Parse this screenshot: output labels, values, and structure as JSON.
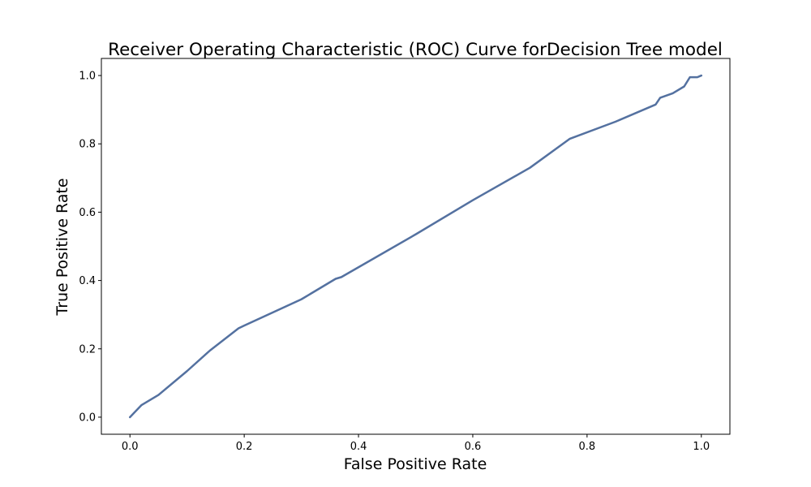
{
  "chart_data": {
    "type": "line",
    "title": "Receiver Operating Characteristic (ROC) Curve forDecision Tree  model",
    "xlabel": "False Positive Rate",
    "ylabel": "True Positive Rate",
    "xlim": [
      -0.05,
      1.05
    ],
    "ylim": [
      -0.05,
      1.05
    ],
    "xticks": [
      0.0,
      0.2,
      0.4,
      0.6,
      0.8,
      1.0
    ],
    "yticks": [
      0.0,
      0.2,
      0.4,
      0.6,
      0.8,
      1.0
    ],
    "xtick_labels": [
      "0.0",
      "0.2",
      "0.4",
      "0.6",
      "0.8",
      "1.0"
    ],
    "ytick_labels": [
      "0.0",
      "0.2",
      "0.4",
      "0.6",
      "0.8",
      "1.0"
    ],
    "grid": false,
    "series": [
      {
        "color": "#5471a0",
        "x": [
          0.0,
          0.02,
          0.05,
          0.1,
          0.14,
          0.19,
          0.2,
          0.3,
          0.36,
          0.37,
          0.5,
          0.6,
          0.7,
          0.77,
          0.85,
          0.92,
          0.928,
          0.95,
          0.97,
          0.98,
          0.993,
          1.0
        ],
        "y": [
          0.0,
          0.035,
          0.065,
          0.135,
          0.195,
          0.26,
          0.268,
          0.345,
          0.405,
          0.41,
          0.535,
          0.635,
          0.73,
          0.815,
          0.865,
          0.915,
          0.935,
          0.948,
          0.968,
          0.995,
          0.995,
          1.0
        ]
      }
    ]
  }
}
